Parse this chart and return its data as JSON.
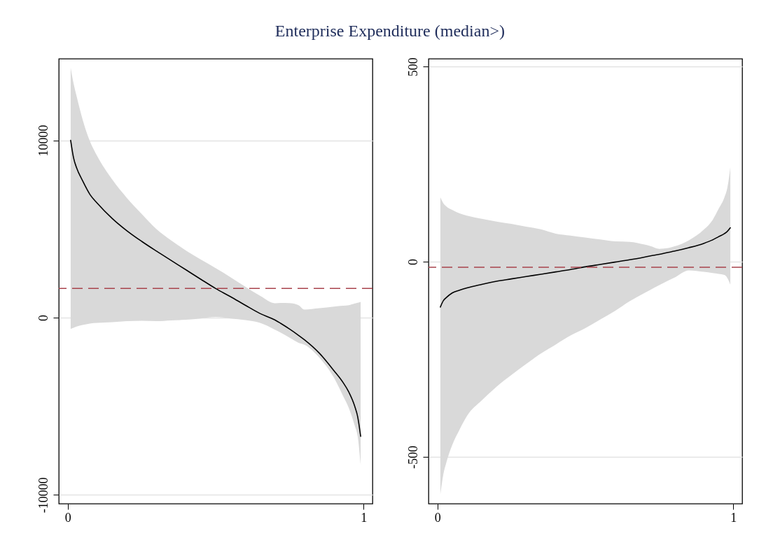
{
  "chart_data": [
    {
      "type": "line",
      "title": "Enterprise Expenditure (median>)",
      "x": [
        0.01,
        0.02,
        0.03,
        0.05,
        0.075,
        0.1,
        0.15,
        0.2,
        0.25,
        0.3,
        0.35,
        0.4,
        0.45,
        0.5,
        0.55,
        0.6,
        0.65,
        0.7,
        0.72,
        0.75,
        0.78,
        0.8,
        0.85,
        0.9,
        0.93,
        0.95,
        0.97,
        0.98,
        0.99
      ],
      "series": [
        {
          "color": "#000000",
          "values": [
            10000,
            9000,
            8450,
            7730,
            6950,
            6450,
            5600,
            4900,
            4300,
            3750,
            3220,
            2690,
            2160,
            1640,
            1180,
            700,
            230,
            -130,
            -330,
            -650,
            -1000,
            -1250,
            -2000,
            -3000,
            -3650,
            -4200,
            -5000,
            -5600,
            -6700
          ],
          "lower": [
            -640,
            -570,
            -510,
            -420,
            -335,
            -300,
            -255,
            -200,
            -180,
            -200,
            -160,
            -125,
            -50,
            35,
            -50,
            -140,
            -300,
            -680,
            -850,
            -1140,
            -1420,
            -1530,
            -2250,
            -3400,
            -4400,
            -5100,
            -6100,
            -6700,
            -8300
          ],
          "upper": [
            14100,
            13200,
            12500,
            11200,
            9950,
            9100,
            7800,
            6750,
            5850,
            4990,
            4350,
            3780,
            3270,
            2790,
            2280,
            1740,
            1230,
            810,
            830,
            820,
            700,
            450,
            530,
            620,
            670,
            700,
            800,
            840,
            890
          ]
        }
      ],
      "xlim": [
        -0.03,
        1.03
      ],
      "xticks": [
        0,
        1
      ],
      "ylim": [
        -10500,
        14600
      ],
      "yticks": [
        -10000,
        0,
        10000
      ],
      "grid": "y",
      "ref_lines": [
        {
          "axis": "y",
          "value": 1650,
          "color": "#a8434c",
          "line_style": "dashed"
        }
      ]
    },
    {
      "type": "line",
      "x": [
        0.01,
        0.02,
        0.03,
        0.05,
        0.075,
        0.1,
        0.15,
        0.2,
        0.25,
        0.3,
        0.35,
        0.4,
        0.45,
        0.5,
        0.55,
        0.6,
        0.65,
        0.7,
        0.72,
        0.75,
        0.78,
        0.8,
        0.85,
        0.9,
        0.93,
        0.95,
        0.97,
        0.98,
        0.99
      ],
      "series": [
        {
          "color": "#000000",
          "values": [
            -116,
            -100,
            -92,
            -80,
            -73,
            -67,
            -58,
            -50,
            -44,
            -38,
            -32,
            -26,
            -20,
            -13,
            -7,
            -1,
            5,
            12,
            15,
            19,
            24,
            27,
            36,
            47,
            56,
            64,
            72,
            78,
            87
          ],
          "lower": [
            -596,
            -545,
            -515,
            -470,
            -430,
            -395,
            -355,
            -320,
            -290,
            -262,
            -235,
            -212,
            -189,
            -170,
            -148,
            -126,
            -101,
            -80,
            -72,
            -60,
            -48,
            -41,
            -22,
            -26,
            -29,
            -31,
            -34,
            -42,
            -59
          ],
          "upper": [
            165,
            150,
            142,
            133,
            124,
            118,
            110,
            103,
            97,
            90,
            83,
            72,
            67,
            62,
            57,
            52,
            51,
            44,
            40,
            33,
            35,
            39,
            55,
            82,
            107,
            135,
            165,
            190,
            242
          ]
        }
      ],
      "xlim": [
        -0.03,
        1.03
      ],
      "xticks": [
        0,
        1
      ],
      "ylim": [
        -620,
        520
      ],
      "yticks": [
        -500,
        0,
        500
      ],
      "grid": "y",
      "ref_lines": [
        {
          "axis": "y",
          "value": -14,
          "color": "#a8434c",
          "line_style": "dashed"
        }
      ]
    }
  ]
}
